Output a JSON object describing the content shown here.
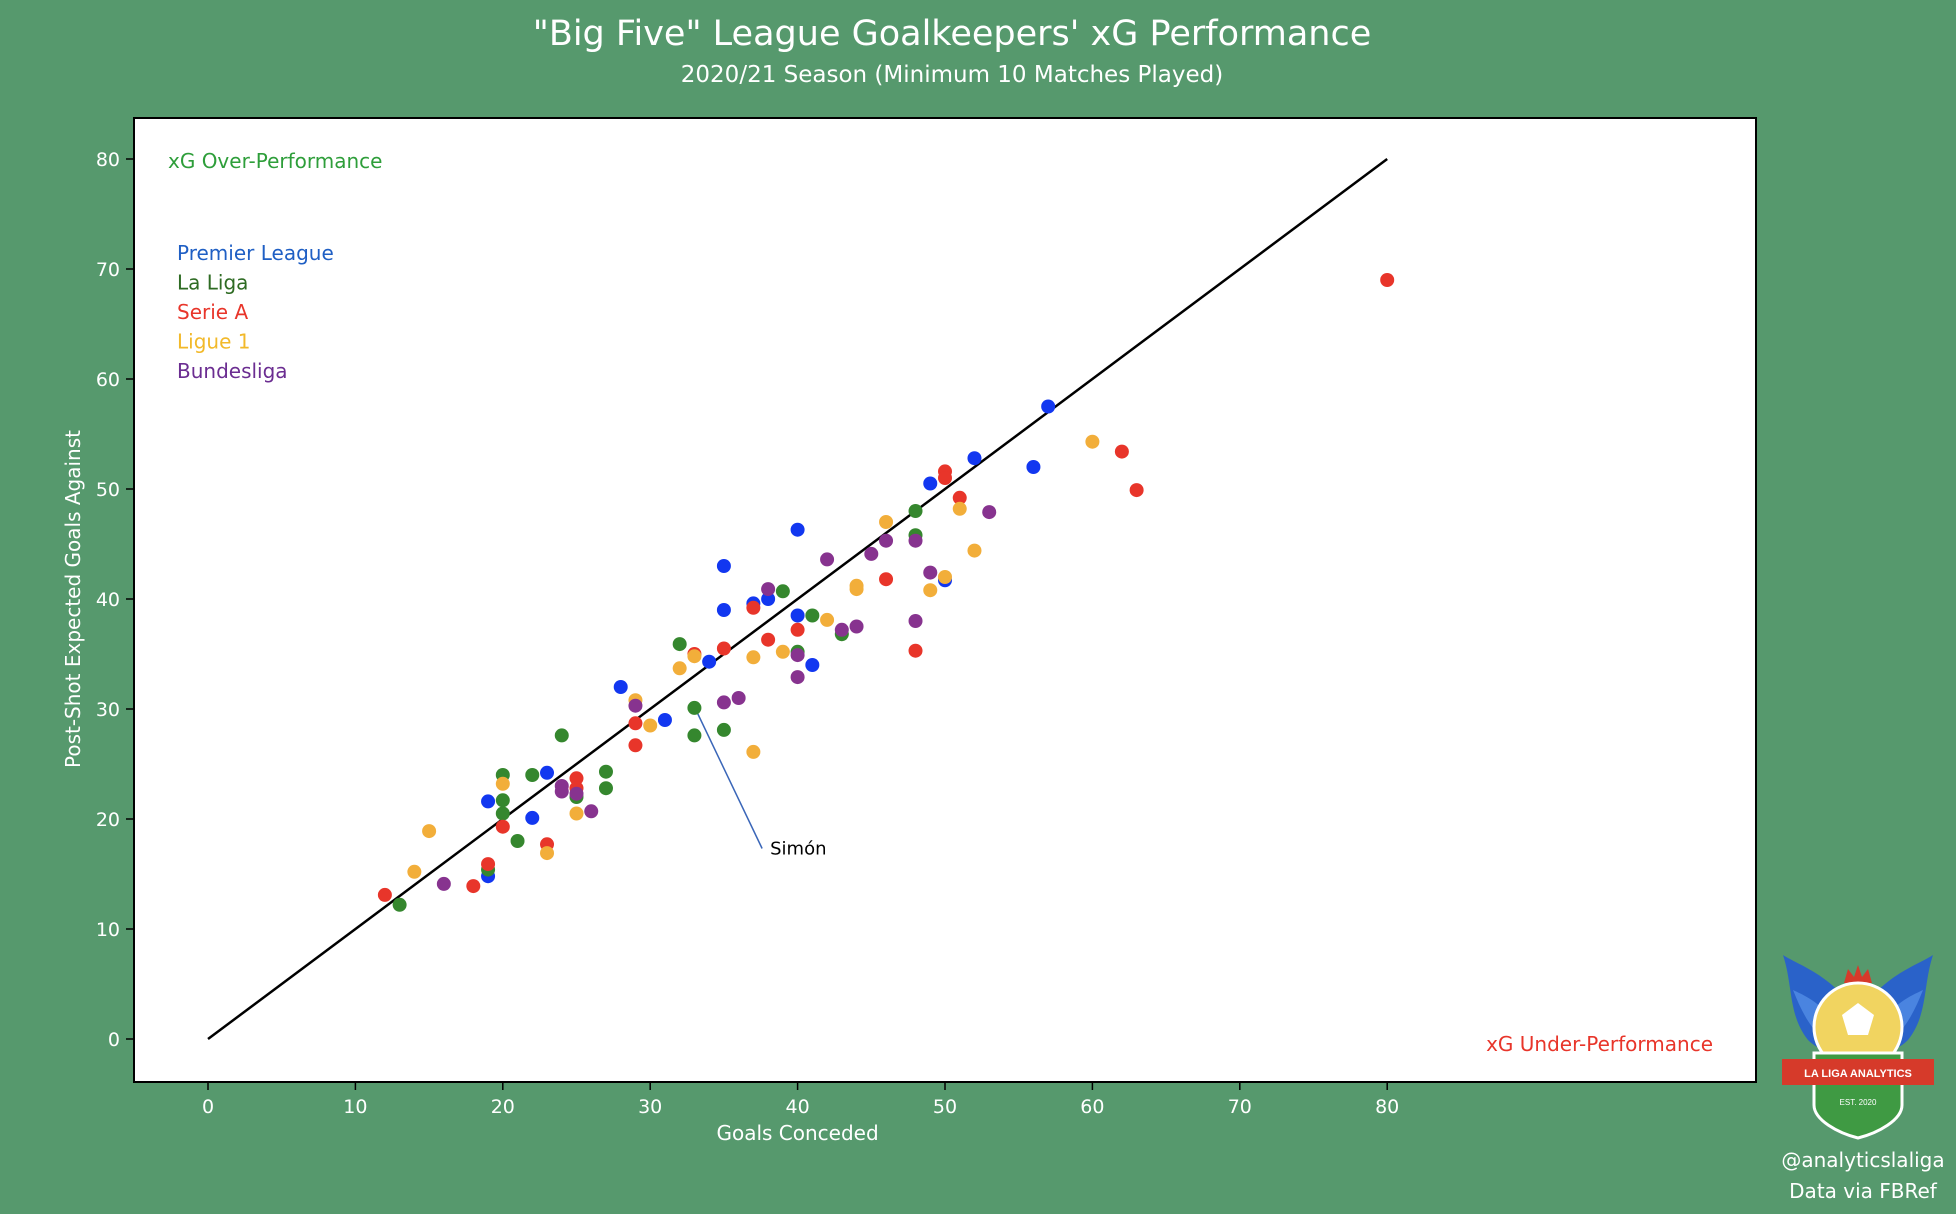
{
  "title": "\"Big Five\" League Goalkeepers' xG Performance",
  "subtitle": "2020/21 Season (Minimum 10 Matches Played)",
  "credits": {
    "handle": "@analyticslaliga",
    "source": "Data via FBRef"
  },
  "logo": {
    "banner": "LA LIGA ANALYTICS",
    "est": "EST. 2020"
  },
  "chart_data": {
    "type": "scatter",
    "xlabel": "Goals Conceded",
    "ylabel": "Post-Shot Expected Goals Against",
    "xlim": [
      -4,
      84
    ],
    "ylim": [
      -4,
      84
    ],
    "xticks": [
      0,
      10,
      20,
      30,
      40,
      50,
      60,
      70,
      80
    ],
    "yticks": [
      0,
      10,
      20,
      30,
      40,
      50,
      60,
      70,
      80
    ],
    "grid": false,
    "reference_line": {
      "from": [
        0,
        0
      ],
      "to": [
        80,
        80
      ],
      "color": "#000000"
    },
    "annotations": [
      {
        "text": "xG Over-Performance",
        "color": "#2e9e3a",
        "position": "top-left"
      },
      {
        "text": "xG Under-Performance",
        "color": "#e8352a",
        "position": "bottom-right"
      },
      {
        "text": "Simón",
        "color": "#000000",
        "points_to": [
          33,
          30
        ],
        "label_at": [
          38,
          17.5
        ],
        "line_color": "#3a66b8"
      }
    ],
    "legend": {
      "position": "top-left"
    },
    "series": [
      {
        "name": "Premier League",
        "color": "#1237f0",
        "legend_color": "#1f5fc4",
        "points": [
          [
            19,
            14.8
          ],
          [
            19,
            21.6
          ],
          [
            22,
            20.1
          ],
          [
            23,
            24.2
          ],
          [
            28,
            32
          ],
          [
            31,
            29
          ],
          [
            34,
            34.3
          ],
          [
            35,
            43
          ],
          [
            35,
            39
          ],
          [
            37,
            39.6
          ],
          [
            38,
            40
          ],
          [
            40,
            46.3
          ],
          [
            40,
            38.5
          ],
          [
            41,
            34
          ],
          [
            49,
            50.5
          ],
          [
            50,
            41.7
          ],
          [
            52,
            52.8
          ],
          [
            56,
            52
          ],
          [
            57,
            57.5
          ]
        ]
      },
      {
        "name": "La Liga",
        "color": "#35872e",
        "legend_color": "#2e6b23",
        "points": [
          [
            13,
            12.2
          ],
          [
            19,
            15.4
          ],
          [
            20,
            21.7
          ],
          [
            20,
            24
          ],
          [
            20,
            20.5
          ],
          [
            21,
            18
          ],
          [
            22,
            24
          ],
          [
            24,
            27.6
          ],
          [
            25,
            22
          ],
          [
            27,
            24.3
          ],
          [
            27,
            22.8
          ],
          [
            32,
            35.9
          ],
          [
            33,
            30.1
          ],
          [
            33,
            27.6
          ],
          [
            35,
            28.1
          ],
          [
            39,
            40.7
          ],
          [
            40,
            35.2
          ],
          [
            41,
            38.5
          ],
          [
            43,
            36.8
          ],
          [
            48,
            48
          ],
          [
            48,
            45.8
          ]
        ]
      },
      {
        "name": "Serie A",
        "color": "#e8352a",
        "legend_color": "#e8352a",
        "points": [
          [
            12,
            13.1
          ],
          [
            18,
            13.9
          ],
          [
            19,
            15.9
          ],
          [
            20,
            19.3
          ],
          [
            23,
            17.7
          ],
          [
            25,
            23.7
          ],
          [
            25,
            22.8
          ],
          [
            29,
            28.7
          ],
          [
            29,
            26.7
          ],
          [
            33,
            35
          ],
          [
            35,
            35.5
          ],
          [
            37,
            39.2
          ],
          [
            38,
            36.3
          ],
          [
            40,
            37.2
          ],
          [
            46,
            41.8
          ],
          [
            48,
            35.3
          ],
          [
            50,
            51.6
          ],
          [
            50,
            51
          ],
          [
            51,
            49.2
          ],
          [
            62,
            53.4
          ],
          [
            63,
            49.9
          ],
          [
            80,
            69
          ]
        ]
      },
      {
        "name": "Ligue 1",
        "color": "#f2ae3a",
        "legend_color": "#f2b92a",
        "points": [
          [
            14,
            15.2
          ],
          [
            15,
            18.9
          ],
          [
            20,
            23.2
          ],
          [
            23,
            16.9
          ],
          [
            25,
            20.5
          ],
          [
            29,
            30.8
          ],
          [
            30,
            28.5
          ],
          [
            32,
            33.7
          ],
          [
            33,
            34.8
          ],
          [
            37,
            34.7
          ],
          [
            37,
            26.1
          ],
          [
            39,
            35.2
          ],
          [
            42,
            38.1
          ],
          [
            44,
            41.2
          ],
          [
            44,
            40.9
          ],
          [
            46,
            47
          ],
          [
            49,
            40.8
          ],
          [
            50,
            42
          ],
          [
            51,
            48.2
          ],
          [
            52,
            44.4
          ],
          [
            60,
            54.3
          ]
        ]
      },
      {
        "name": "Bundesliga",
        "color": "#87338f",
        "legend_color": "#6b2d91",
        "points": [
          [
            16,
            14.1
          ],
          [
            24,
            23
          ],
          [
            24,
            22.5
          ],
          [
            25,
            22.3
          ],
          [
            26,
            20.7
          ],
          [
            29,
            30.3
          ],
          [
            35,
            30.6
          ],
          [
            36,
            31
          ],
          [
            38,
            40.9
          ],
          [
            40,
            34.9
          ],
          [
            40,
            32.9
          ],
          [
            42,
            43.6
          ],
          [
            43,
            37.2
          ],
          [
            44,
            37.5
          ],
          [
            45,
            44.1
          ],
          [
            46,
            45.3
          ],
          [
            48,
            45.3
          ],
          [
            48,
            38
          ],
          [
            49,
            42.4
          ],
          [
            53,
            47.9
          ]
        ]
      }
    ]
  }
}
